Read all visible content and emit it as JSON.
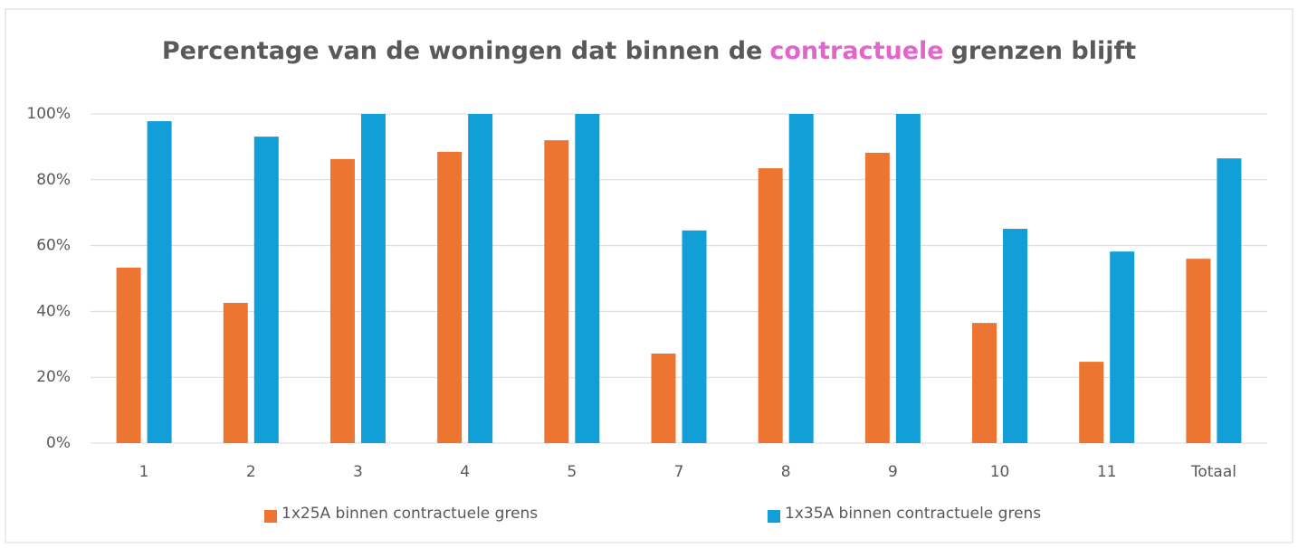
{
  "chart_data": {
    "type": "bar",
    "title_parts": [
      "Percentage van de woningen dat binnen de",
      "contractuele",
      "grenzen blijft"
    ],
    "title_highlight_color": "#e066cc",
    "categories": [
      "1",
      "2",
      "3",
      "4",
      "5",
      "7",
      "8",
      "9",
      "10",
      "11",
      "Totaal"
    ],
    "series": [
      {
        "name": "1x25A binnen contractuele grens",
        "color": "#ed7532",
        "values": [
          53.3,
          42.6,
          86.3,
          88.5,
          92,
          27.2,
          83.5,
          88.2,
          36.5,
          24.7,
          56
        ]
      },
      {
        "name": "1x35A binnen contractuele grens",
        "color": "#129fd8",
        "values": [
          97.8,
          93.1,
          100,
          100,
          100,
          64.6,
          100,
          100,
          65.1,
          58.2,
          86.5
        ]
      }
    ],
    "ylim": [
      0,
      100
    ],
    "yticks": [
      {
        "value": 0,
        "label": "0%"
      },
      {
        "value": 20,
        "label": "20%"
      },
      {
        "value": 40,
        "label": "40%"
      },
      {
        "value": 60,
        "label": "60%"
      },
      {
        "value": 80,
        "label": "80%"
      },
      {
        "value": 100,
        "label": "100%"
      }
    ],
    "grid": true
  }
}
